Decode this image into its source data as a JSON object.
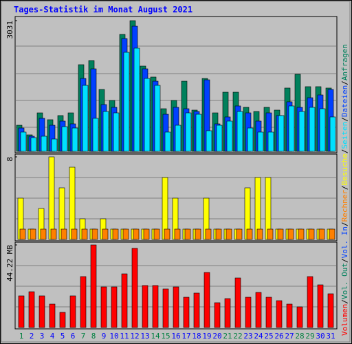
{
  "title": "Tages-Statistik im Monat August 2021",
  "separator": "/",
  "categories": [
    "1",
    "2",
    "3",
    "4",
    "5",
    "6",
    "7",
    "8",
    "9",
    "10",
    "11",
    "12",
    "13",
    "14",
    "15",
    "16",
    "17",
    "18",
    "19",
    "20",
    "21",
    "22",
    "23",
    "24",
    "25",
    "26",
    "27",
    "28",
    "29",
    "30",
    "31"
  ],
  "category_colors": [
    "#008040",
    "#0000ff",
    "#0000ff",
    "#0000ff",
    "#0000ff",
    "#0000ff",
    "#008040",
    "#008040",
    "#0000ff",
    "#0000ff",
    "#0000ff",
    "#0000ff",
    "#0000ff",
    "#008040",
    "#008040",
    "#0000ff",
    "#0000ff",
    "#0000ff",
    "#0000ff",
    "#0000ff",
    "#008040",
    "#008040",
    "#0000ff",
    "#0000ff",
    "#0000ff",
    "#0000ff",
    "#0000ff",
    "#008040",
    "#008040",
    "#0000ff",
    "#0000ff"
  ],
  "chart_data": [
    {
      "type": "bar",
      "ylim": [
        0,
        3031
      ],
      "yticks": [
        3031
      ],
      "series": [
        {
          "name": "Anfragen",
          "color": "#00805c",
          "values": [
            606,
            383,
            893,
            734,
            830,
            893,
            2010,
            2106,
            1436,
            1181,
            2712,
            3031,
            1978,
            1723,
            989,
            1181,
            1627,
            957,
            1691,
            893,
            1372,
            1372,
            1021,
            925,
            1021,
            957,
            1468,
            1787,
            1500,
            1500,
            1468
          ]
        },
        {
          "name": "Dateien",
          "color": "#0040ff",
          "values": [
            542,
            351,
            766,
            606,
            702,
            638,
            1691,
            1914,
            1085,
            1021,
            2616,
            2903,
            1914,
            1627,
            861,
            1021,
            989,
            925,
            1659,
            638,
            798,
            1053,
            893,
            702,
            893,
            830,
            1149,
            1021,
            1244,
            1308,
            1436
          ]
        },
        {
          "name": "Seiten",
          "color": "#00e0ff",
          "values": [
            447,
            319,
            351,
            287,
            574,
            542,
            1531,
            766,
            925,
            893,
            2297,
            2393,
            1691,
            1531,
            447,
            606,
            893,
            861,
            479,
            606,
            702,
            925,
            542,
            447,
            447,
            830,
            1053,
            925,
            1021,
            989,
            798
          ]
        }
      ]
    },
    {
      "type": "bar",
      "ylim": [
        0,
        8
      ],
      "yticks": [
        8
      ],
      "series": [
        {
          "name": "Besuche",
          "color": "#ffff00",
          "values": [
            4,
            1,
            3,
            8,
            5,
            7,
            2,
            1,
            2,
            1,
            1,
            1,
            1,
            1,
            6,
            4,
            1,
            1,
            4,
            1,
            1,
            1,
            5,
            6,
            6,
            1,
            1,
            1,
            1,
            1,
            1
          ]
        },
        {
          "name": "Rechner",
          "color": "#ff8000",
          "values": [
            1,
            1,
            1,
            1,
            1,
            1,
            1,
            1,
            1,
            1,
            1,
            1,
            1,
            1,
            1,
            1,
            1,
            1,
            1,
            1,
            1,
            1,
            1,
            1,
            1,
            1,
            1,
            1,
            1,
            1,
            1
          ]
        }
      ]
    },
    {
      "type": "bar",
      "ylim": [
        0,
        44.22
      ],
      "yticks": [
        {
          "value": 44.22,
          "label": "44.22 MB"
        }
      ],
      "legend_only": [
        {
          "name": "Vol. Out",
          "color": "#00805c"
        },
        {
          "name": "Vol. In",
          "color": "#0040ff"
        }
      ],
      "series": [
        {
          "name": "Volumen",
          "color": "#ff0000",
          "values": [
            16.95,
            19.16,
            16.95,
            12.53,
            8.11,
            16.95,
            27.27,
            44.22,
            21.74,
            21.74,
            28.74,
            42.38,
            22.48,
            22.48,
            20.64,
            21.74,
            16.21,
            18.43,
            29.48,
            13.27,
            15.48,
            26.53,
            16.21,
            18.79,
            16.21,
            14.37,
            12.53,
            11.06,
            27.27,
            22.85,
            18.06
          ]
        }
      ]
    }
  ]
}
